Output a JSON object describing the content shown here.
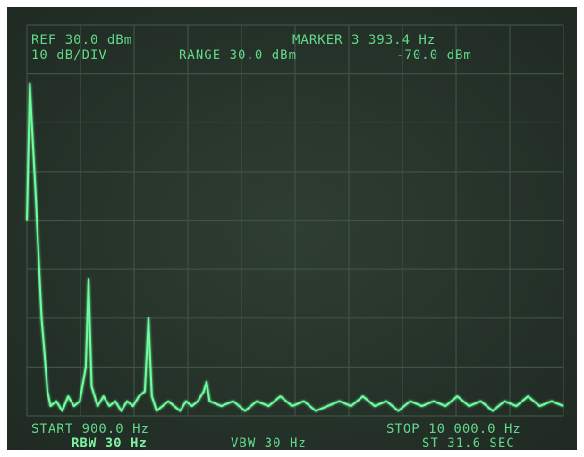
{
  "chart_data": {
    "type": "line",
    "annotations": [
      "REF 30.0 dBm",
      "10 dB/DIV",
      "RANGE 30.0 dBm",
      "MARKER 3 393.4 Hz",
      "-70.0 dBm",
      "START 900.0 Hz",
      "STOP 10 000.0 Hz",
      "RBW 30 Hz",
      "VBW 30 Hz",
      "ST 31.6 SEC"
    ],
    "xlim": [
      900,
      10000
    ],
    "ylim": [
      -50,
      30
    ],
    "series": [
      {
        "color": "#6dff9e",
        "x": [
          900,
          950,
          1050,
          1150,
          1250,
          1300,
          1400,
          1500,
          1600,
          1700,
          1800,
          1900,
          1946,
          2000,
          2100,
          2200,
          2300,
          2400,
          2500,
          2600,
          2700,
          2800,
          2900,
          2963,
          3020,
          3100,
          3200,
          3300,
          3400,
          3500,
          3600,
          3700,
          3800,
          3900,
          3948,
          4000,
          4200,
          4400,
          4600,
          4800,
          5000,
          5200,
          5400,
          5600,
          5800,
          6000,
          6200,
          6400,
          6600,
          6800,
          7000,
          7200,
          7400,
          7600,
          7800,
          8000,
          8200,
          8400,
          8600,
          8800,
          9000,
          9200,
          9400,
          9600,
          9800,
          10000
        ],
        "values": [
          -10,
          18,
          -5,
          -30,
          -45,
          -48,
          -47,
          -49,
          -46,
          -48,
          -47,
          -40,
          -22,
          -44,
          -48,
          -46,
          -48,
          -47,
          -49,
          -47,
          -48,
          -46,
          -45,
          -30,
          -46,
          -49,
          -48,
          -47,
          -48,
          -49,
          -47,
          -48,
          -47,
          -45,
          -43,
          -47,
          -48,
          -47,
          -49,
          -47,
          -48,
          -46,
          -48,
          -47,
          -49,
          -48,
          -47,
          -48,
          -46,
          -48,
          -47,
          -49,
          -47,
          -48,
          -47,
          -48,
          -46,
          -48,
          -47,
          -49,
          -47,
          -48,
          -46,
          -48,
          -47,
          -48
        ]
      }
    ]
  }
}
